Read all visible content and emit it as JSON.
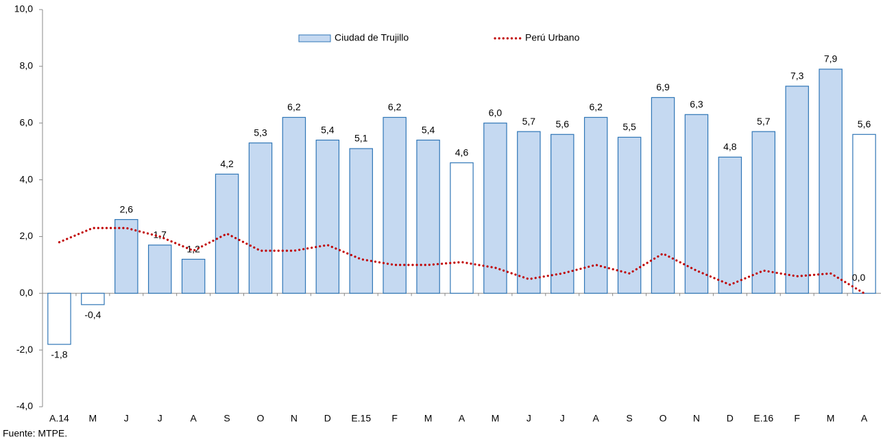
{
  "chart_data": {
    "type": "bar",
    "categories": [
      "A.14",
      "M",
      "J",
      "J",
      "A",
      "S",
      "O",
      "N",
      "D",
      "E.15",
      "F",
      "M",
      "A",
      "M",
      "J",
      "J",
      "A",
      "S",
      "O",
      "N",
      "D",
      "E.16",
      "F",
      "M",
      "A"
    ],
    "series": [
      {
        "name": "Ciudad de Trujillo",
        "type": "bar",
        "color": "#c5d9f1",
        "edge_color": "#2e75b6",
        "colors": [
          "#ffffff",
          "#ffffff",
          "#c5d9f1",
          "#c5d9f1",
          "#c5d9f1",
          "#c5d9f1",
          "#c5d9f1",
          "#c5d9f1",
          "#c5d9f1",
          "#c5d9f1",
          "#c5d9f1",
          "#c5d9f1",
          "#ffffff",
          "#c5d9f1",
          "#c5d9f1",
          "#c5d9f1",
          "#c5d9f1",
          "#c5d9f1",
          "#c5d9f1",
          "#c5d9f1",
          "#c5d9f1",
          "#c5d9f1",
          "#c5d9f1",
          "#c5d9f1",
          "#ffffff"
        ],
        "values": [
          -1.8,
          -0.4,
          2.6,
          1.7,
          1.2,
          4.2,
          5.3,
          6.2,
          5.4,
          5.1,
          6.2,
          5.4,
          4.6,
          6.0,
          5.7,
          5.6,
          6.2,
          5.5,
          6.9,
          6.3,
          4.8,
          5.7,
          7.3,
          7.9,
          5.6
        ],
        "value_labels": [
          "-1,8",
          "-0,4",
          "2,6",
          "1,7",
          "1,2",
          "4,2",
          "5,3",
          "6,2",
          "5,4",
          "5,1",
          "6,2",
          "5,4",
          "4,6",
          "6,0",
          "5,7",
          "5,6",
          "6,2",
          "5,5",
          "6,9",
          "6,3",
          "4,8",
          "5,7",
          "7,3",
          "7,9",
          "5,6"
        ]
      },
      {
        "name": "Perú Urbano",
        "type": "line",
        "color": "#c00000",
        "values": [
          1.8,
          2.3,
          2.3,
          2.0,
          1.5,
          2.1,
          1.5,
          1.5,
          1.7,
          1.2,
          1.0,
          1.0,
          1.1,
          0.9,
          0.5,
          0.7,
          1.0,
          0.7,
          1.4,
          0.8,
          0.3,
          0.8,
          0.6,
          0.7,
          0.0
        ],
        "value_labels": [
          null,
          null,
          null,
          null,
          null,
          null,
          null,
          null,
          null,
          null,
          null,
          null,
          null,
          null,
          null,
          null,
          null,
          null,
          null,
          null,
          null,
          null,
          null,
          null,
          "0,0"
        ]
      }
    ],
    "ylim": [
      -4,
      10
    ],
    "yticks": [
      {
        "value": -4,
        "label": "-4,0"
      },
      {
        "value": -2,
        "label": "-2,0"
      },
      {
        "value": 0,
        "label": "0,0"
      },
      {
        "value": 2,
        "label": "2,0"
      },
      {
        "value": 4,
        "label": "4,0"
      },
      {
        "value": 6,
        "label": "6,0"
      },
      {
        "value": 8,
        "label": "8,0"
      },
      {
        "value": 10,
        "label": "10,0"
      }
    ],
    "grid": false,
    "legend": "top",
    "source": "Fuente: MTPE."
  }
}
